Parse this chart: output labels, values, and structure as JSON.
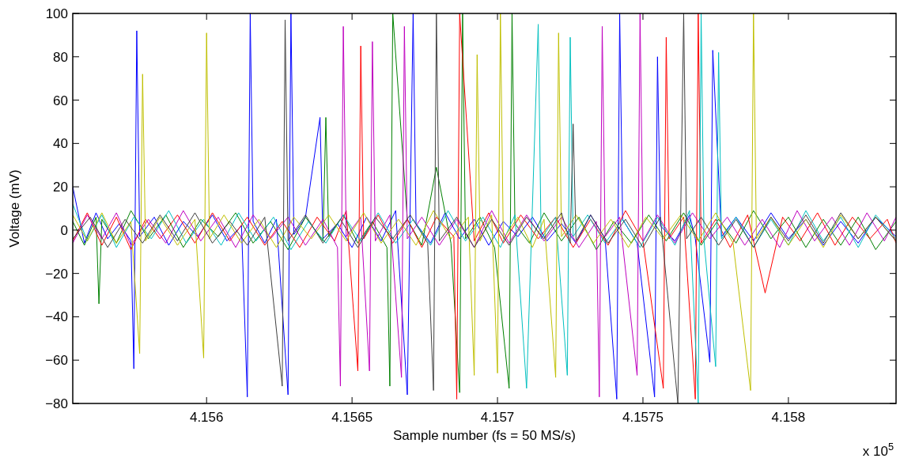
{
  "chart_data": {
    "type": "line",
    "xlabel": "Sample number (fs = 50 MS/s)",
    "ylabel": "Voltage (mV)",
    "annotations": [
      "x 10$^{5}$"
    ],
    "xlim": [
      4.15554,
      4.15837
    ],
    "ylim": [
      -80,
      100
    ],
    "xticks": [
      4.156,
      4.1565,
      4.157,
      4.1575,
      4.158
    ],
    "yticks": [
      -80,
      -60,
      -40,
      -20,
      0,
      20,
      40,
      60,
      80,
      100
    ],
    "series": [
      {
        "color": "#0000ff",
        "x": [
          4.15554,
          4.15558,
          4.15562,
          4.15566,
          4.1557,
          4.15574,
          4.15575,
          4.15576,
          4.15577,
          4.15582,
          4.15587,
          4.15592,
          4.15597,
          4.15602,
          4.15607,
          4.15612,
          4.15614,
          4.15615,
          4.15616,
          4.1562,
          4.15624,
          4.15628,
          4.15629,
          4.1563,
          4.15634,
          4.15639,
          4.1564,
          4.15645,
          4.1565,
          4.15655,
          4.1566,
          4.15665,
          4.15669,
          4.15671,
          4.15672,
          4.15677,
          4.15682,
          4.15687,
          4.15692,
          4.15697,
          4.15702,
          4.15707,
          4.15712,
          4.15717,
          4.15722,
          4.15727,
          4.15732,
          4.15737,
          4.15741,
          4.15742,
          4.15743,
          4.15748,
          4.15754,
          4.15755,
          4.15756,
          4.15761,
          4.15766,
          4.15768,
          4.15773,
          4.15774,
          4.15777,
          4.15782,
          4.15788,
          4.15794,
          4.158,
          4.15806,
          4.15812,
          4.15818,
          4.15824,
          4.1583,
          4.15837
        ],
        "values": [
          20,
          -6,
          8,
          -4,
          3,
          -5,
          -64,
          92,
          -3,
          6,
          -7,
          4,
          -3,
          7,
          -5,
          2,
          -77,
          100,
          4,
          -6,
          5,
          -76,
          100,
          -2,
          6,
          52,
          -4,
          3,
          -8,
          6,
          -5,
          9,
          -76,
          100,
          3,
          -6,
          8,
          -4,
          5,
          -7,
          4,
          -3,
          6,
          -5,
          3,
          -6,
          7,
          -4,
          -78,
          100,
          5,
          -6,
          -77,
          80,
          2,
          -5,
          7,
          -4,
          -61,
          83,
          -3,
          6,
          -5,
          8,
          -4,
          5,
          -7,
          4,
          -6,
          6,
          -3
        ]
      },
      {
        "color": "#008000",
        "x": [
          4.15554,
          4.15558,
          4.15562,
          4.15563,
          4.15564,
          4.15569,
          4.15574,
          4.1558,
          4.15586,
          4.15592,
          4.15598,
          4.15604,
          4.1561,
          4.15616,
          4.15622,
          4.15628,
          4.15634,
          4.1564,
          4.15641,
          4.15642,
          4.15647,
          4.15652,
          4.15657,
          4.15662,
          4.15663,
          4.15664,
          4.15669,
          4.15674,
          4.15679,
          4.15684,
          4.15687,
          4.15688,
          4.15689,
          4.15694,
          4.15699,
          4.15704,
          4.15705,
          4.15706,
          4.15711,
          4.15716,
          4.15722,
          4.15728,
          4.15734,
          4.1574,
          4.15746,
          4.15752,
          4.15758,
          4.15764,
          4.1577,
          4.15776,
          4.15782,
          4.15788,
          4.15794,
          4.158,
          4.15806,
          4.15812,
          4.15818,
          4.15824,
          4.1583,
          4.15837
        ],
        "values": [
          4,
          -7,
          6,
          -34,
          5,
          -6,
          9,
          -4,
          7,
          -8,
          5,
          -3,
          8,
          -6,
          4,
          -9,
          6,
          -5,
          52,
          -3,
          7,
          -6,
          4,
          -8,
          -72,
          100,
          5,
          -7,
          29,
          -6,
          -75,
          100,
          -4,
          6,
          -8,
          -73,
          100,
          3,
          -6,
          8,
          -5,
          6,
          -9,
          4,
          -6,
          7,
          -5,
          8,
          -7,
          5,
          -6,
          9,
          -4,
          6,
          -8,
          5,
          -7,
          6,
          -9,
          4
        ]
      },
      {
        "color": "#ff0000",
        "x": [
          4.15554,
          4.15559,
          4.15564,
          4.15569,
          4.15574,
          4.15579,
          4.15584,
          4.1559,
          4.15596,
          4.15602,
          4.15608,
          4.15614,
          4.1562,
          4.15626,
          4.15632,
          4.15638,
          4.15644,
          4.15648,
          4.15652,
          4.15653,
          4.15654,
          4.15659,
          4.15664,
          4.15669,
          4.15674,
          4.15679,
          4.15685,
          4.15686,
          4.15687,
          4.15692,
          4.15697,
          4.15702,
          4.15708,
          4.15714,
          4.1572,
          4.15726,
          4.15732,
          4.15738,
          4.15744,
          4.1575,
          4.15757,
          4.15758,
          4.15759,
          4.15764,
          4.15768,
          4.15769,
          4.1577,
          4.15775,
          4.1578,
          4.15786,
          4.15792,
          4.15798,
          4.15804,
          4.1581,
          4.15816,
          4.15822,
          4.15828,
          4.15834,
          4.15837
        ],
        "values": [
          -5,
          8,
          -7,
          6,
          -9,
          5,
          -4,
          7,
          -6,
          8,
          -5,
          6,
          -7,
          4,
          -8,
          6,
          -5,
          9,
          -65,
          85,
          -4,
          7,
          -6,
          5,
          -8,
          6,
          -3,
          -78,
          100,
          -5,
          8,
          -6,
          7,
          -4,
          6,
          -8,
          5,
          -7,
          9,
          -5,
          -73,
          89,
          -4,
          6,
          -78,
          100,
          -6,
          5,
          -8,
          7,
          -29,
          6,
          -5,
          8,
          -7,
          6,
          -4,
          5,
          -6
        ]
      },
      {
        "color": "#00bfbf",
        "x": [
          4.15554,
          4.15559,
          4.15564,
          4.15569,
          4.15575,
          4.15581,
          4.15587,
          4.15593,
          4.15599,
          4.15605,
          4.15611,
          4.15617,
          4.15623,
          4.15629,
          4.15635,
          4.15641,
          4.15647,
          4.15653,
          4.15659,
          4.15665,
          4.15671,
          4.15677,
          4.15683,
          4.15689,
          4.15695,
          4.15701,
          4.15706,
          4.1571,
          4.15714,
          4.15715,
          4.1572,
          4.15724,
          4.15725,
          4.15726,
          4.15731,
          4.15737,
          4.15743,
          4.15749,
          4.15755,
          4.15761,
          4.15766,
          4.15769,
          4.1577,
          4.15771,
          4.15775,
          4.15776,
          4.15777,
          4.15782,
          4.15788,
          4.15794,
          4.158,
          4.15806,
          4.15812,
          4.15818,
          4.15824,
          4.1583,
          4.15837
        ],
        "values": [
          12,
          -5,
          7,
          -8,
          6,
          -4,
          9,
          -6,
          5,
          -7,
          8,
          -5,
          6,
          -9,
          4,
          -6,
          7,
          -5,
          8,
          -6,
          5,
          -7,
          9,
          -5,
          6,
          -8,
          7,
          -73,
          95,
          -4,
          6,
          -67,
          89,
          -3,
          7,
          -6,
          5,
          -8,
          6,
          -7,
          9,
          -80,
          100,
          -5,
          -63,
          82,
          -4,
          6,
          -8,
          5,
          -7,
          9,
          -5,
          6,
          -8,
          7,
          -4
        ]
      },
      {
        "color": "#bf00bf",
        "x": [
          4.15554,
          4.15559,
          4.15564,
          4.15569,
          4.15574,
          4.1558,
          4.15586,
          4.15592,
          4.15598,
          4.15604,
          4.1561,
          4.15616,
          4.15622,
          4.15628,
          4.15634,
          4.1564,
          4.15645,
          4.15646,
          4.15647,
          4.15648,
          4.15653,
          4.15656,
          4.15657,
          4.15658,
          4.15663,
          4.15667,
          4.15668,
          4.15669,
          4.15674,
          4.1568,
          4.15686,
          4.15692,
          4.15698,
          4.15704,
          4.1571,
          4.15716,
          4.15722,
          4.15728,
          4.15734,
          4.15735,
          4.15736,
          4.15737,
          4.15742,
          4.15748,
          4.15749,
          4.1575,
          4.15755,
          4.15761,
          4.15767,
          4.15773,
          4.15779,
          4.15785,
          4.15791,
          4.15797,
          4.15803,
          4.15809,
          4.15815,
          4.15821,
          4.15827,
          4.15833,
          4.15837
        ],
        "values": [
          -6,
          7,
          -4,
          8,
          -7,
          5,
          -6,
          9,
          -5,
          6,
          -8,
          7,
          -4,
          6,
          -7,
          5,
          -8,
          -72,
          94,
          -3,
          6,
          -65,
          87,
          -5,
          7,
          -68,
          94,
          -4,
          6,
          -7,
          5,
          -8,
          9,
          -6,
          7,
          -5,
          6,
          -8,
          4,
          -77,
          94,
          -3,
          6,
          -67,
          100,
          -5,
          7,
          -6,
          8,
          -4,
          6,
          -7,
          5,
          -8,
          9,
          -5,
          6,
          -7,
          8,
          -5,
          6
        ]
      },
      {
        "color": "#bfbf00",
        "x": [
          4.15554,
          4.15559,
          4.15564,
          4.15569,
          4.15574,
          4.15577,
          4.15578,
          4.15579,
          4.15584,
          4.1559,
          4.15596,
          4.15599,
          4.156,
          4.15601,
          4.15606,
          4.15612,
          4.15618,
          4.15624,
          4.1563,
          4.15636,
          4.15642,
          4.15648,
          4.15654,
          4.1566,
          4.15666,
          4.15672,
          4.15678,
          4.15684,
          4.1569,
          4.15692,
          4.15693,
          4.15694,
          4.15698,
          4.157,
          4.15701,
          4.15702,
          4.15707,
          4.15712,
          4.15716,
          4.1572,
          4.15721,
          4.15722,
          4.15727,
          4.15733,
          4.15739,
          4.15745,
          4.15751,
          4.15757,
          4.15763,
          4.15769,
          4.15775,
          4.15781,
          4.15787,
          4.15788,
          4.15789,
          4.15794,
          4.158,
          4.15806,
          4.15812,
          4.15818,
          4.15824,
          4.1583,
          4.15837
        ],
        "values": [
          7,
          -5,
          8,
          -6,
          4,
          -57,
          72,
          -5,
          6,
          -7,
          5,
          -59,
          91,
          -4,
          7,
          -6,
          5,
          -8,
          6,
          -4,
          7,
          -5,
          8,
          -6,
          5,
          -7,
          9,
          -4,
          6,
          -67,
          81,
          -5,
          7,
          -66,
          100,
          -4,
          6,
          -8,
          5,
          -68,
          91,
          -3,
          7,
          -6,
          5,
          -8,
          6,
          -4,
          7,
          -5,
          8,
          -6,
          -74,
          100,
          -4,
          6,
          -7,
          5,
          -8,
          7,
          -4,
          6,
          -5
        ]
      },
      {
        "color": "#404040",
        "x": [
          4.15554,
          4.1556,
          4.15566,
          4.15572,
          4.15578,
          4.15584,
          4.1559,
          4.15596,
          4.15602,
          4.15608,
          4.15614,
          4.1562,
          4.15626,
          4.15627,
          4.15628,
          4.15634,
          4.1564,
          4.15646,
          4.15652,
          4.15658,
          4.15664,
          4.1567,
          4.15676,
          4.15678,
          4.15679,
          4.1568,
          4.15686,
          4.15692,
          4.15698,
          4.15704,
          4.1571,
          4.15716,
          4.15722,
          4.15725,
          4.15726,
          4.15727,
          4.15732,
          4.15738,
          4.15744,
          4.1575,
          4.15756,
          4.15762,
          4.15764,
          4.15765,
          4.1577,
          4.15776,
          4.15782,
          4.15788,
          4.15794,
          4.158,
          4.15806,
          4.15812,
          4.15818,
          4.15824,
          4.1583,
          4.15837
        ],
        "values": [
          -4,
          6,
          -8,
          5,
          -6,
          7,
          -5,
          8,
          -6,
          4,
          -7,
          6,
          -72,
          97,
          -5,
          7,
          -6,
          5,
          -8,
          6,
          -4,
          7,
          -6,
          -74,
          100,
          -5,
          6,
          -8,
          5,
          -7,
          6,
          -4,
          8,
          -6,
          49,
          -5,
          7,
          -6,
          5,
          -8,
          6,
          -80,
          100,
          -4,
          6,
          -7,
          5,
          -8,
          6,
          -5,
          7,
          -6,
          8,
          -4,
          6,
          -5
        ]
      }
    ]
  }
}
